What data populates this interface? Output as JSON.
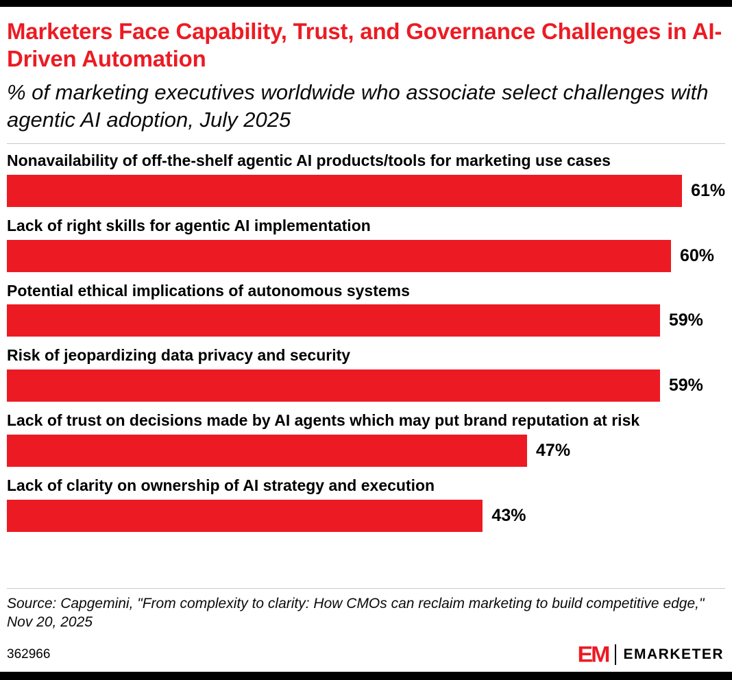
{
  "chart_data": {
    "type": "bar",
    "orientation": "horizontal",
    "title": "Marketers Face Capability, Trust, and Governance Challenges in AI-Driven Automation",
    "subtitle": "% of marketing executives worldwide who associate select challenges with agentic AI adoption, July 2025",
    "categories": [
      "Nonavailability of off-the-shelf agentic AI products/tools for marketing use cases",
      "Lack of right skills for agentic AI implementation",
      "Potential ethical implications of autonomous systems",
      "Risk of jeopardizing data privacy and security",
      "Lack of trust on decisions made by AI agents which may put brand reputation at risk",
      "Lack of clarity on ownership of AI strategy and execution"
    ],
    "values": [
      61,
      60,
      59,
      59,
      47,
      43
    ],
    "value_labels": [
      "61%",
      "60%",
      "59%",
      "59%",
      "47%",
      "43%"
    ],
    "value_suffix": "%",
    "value_label_position": "outside-right",
    "xlim": [
      0,
      65
    ],
    "grid": false,
    "legend": "none",
    "bar_color": "#EC1B23",
    "source": "Source: Capgemini, \"From complexity to clarity: How CMOs can reclaim marketing to build competitive edge,\" Nov 20, 2025"
  },
  "colors": {
    "title_red": "#EC1B23",
    "bar_red": "#EC1B23",
    "text_black": "#000000",
    "divider_gray": "#c9c9c9",
    "frame_black": "#000000"
  },
  "footer": {
    "chart_id": "362966",
    "logo_mark": "EM",
    "logo_text": "EMARKETER"
  }
}
